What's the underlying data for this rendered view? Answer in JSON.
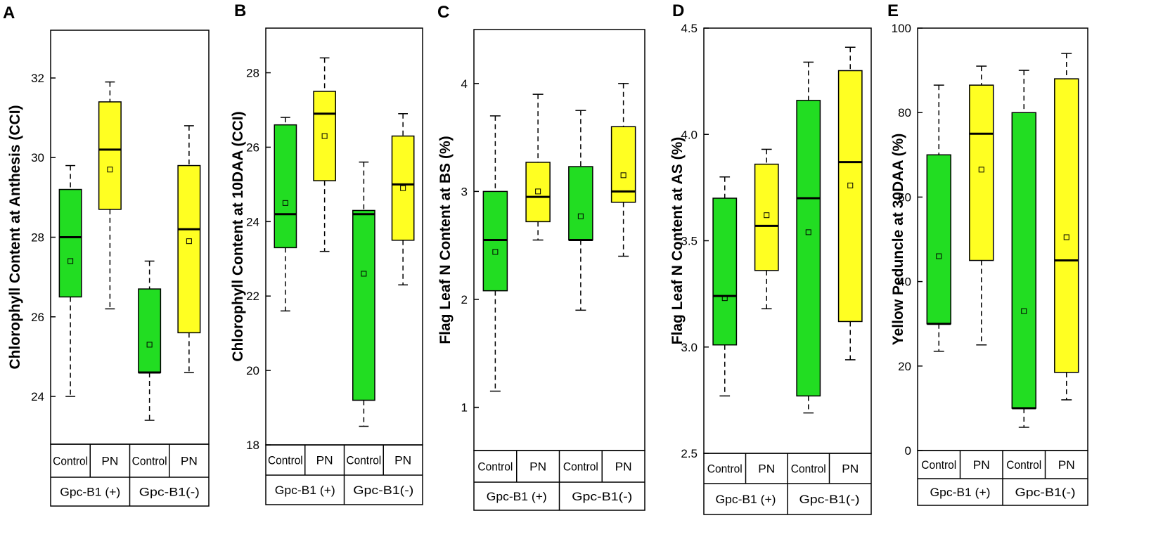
{
  "colors": {
    "control": "#22dd22",
    "pn": "#ffff22",
    "stroke": "#000000"
  },
  "chart_data": [
    {
      "type": "box",
      "panel": "A",
      "ylabel": "Chlorophyll Content at Anthesis (CCI)",
      "ylim": [
        22.8,
        33.2
      ],
      "yticks": [
        24,
        26,
        28,
        30,
        32
      ],
      "treatments": [
        "Control",
        "PN",
        "Control",
        "PN"
      ],
      "genotypes": [
        "Gpc-B1 (+)",
        "Gpc-B1(-)"
      ],
      "boxes": [
        {
          "genotype": "Gpc-B1 (+)",
          "treatment": "Control",
          "min": 24.0,
          "q1": 26.5,
          "median": 28.0,
          "q3": 29.2,
          "max": 29.8,
          "mean": 27.4
        },
        {
          "genotype": "Gpc-B1 (+)",
          "treatment": "PN",
          "min": 26.2,
          "q1": 28.7,
          "median": 30.2,
          "q3": 31.4,
          "max": 31.9,
          "mean": 29.7
        },
        {
          "genotype": "Gpc-B1(-)",
          "treatment": "Control",
          "min": 23.4,
          "q1": 24.6,
          "median": 24.6,
          "q3": 26.7,
          "max": 27.4,
          "mean": 25.3
        },
        {
          "genotype": "Gpc-B1(-)",
          "treatment": "PN",
          "min": 24.6,
          "q1": 25.6,
          "median": 28.2,
          "q3": 29.8,
          "max": 30.8,
          "mean": 27.9
        }
      ]
    },
    {
      "type": "box",
      "panel": "B",
      "ylabel": "Chlorophyll Content at 10DAA (CCI)",
      "ylim": [
        18.0,
        29.2
      ],
      "yticks": [
        18,
        20,
        22,
        24,
        26,
        28
      ],
      "treatments": [
        "Control",
        "PN",
        "Control",
        "PN"
      ],
      "genotypes": [
        "Gpc-B1 (+)",
        "Gpc-B1(-)"
      ],
      "boxes": [
        {
          "genotype": "Gpc-B1 (+)",
          "treatment": "Control",
          "min": 21.6,
          "q1": 23.3,
          "median": 24.2,
          "q3": 26.6,
          "max": 26.8,
          "mean": 24.5
        },
        {
          "genotype": "Gpc-B1 (+)",
          "treatment": "PN",
          "min": 23.2,
          "q1": 25.1,
          "median": 26.9,
          "q3": 27.5,
          "max": 28.4,
          "mean": 26.3
        },
        {
          "genotype": "Gpc-B1(-)",
          "treatment": "Control",
          "min": 18.5,
          "q1": 19.2,
          "median": 24.2,
          "q3": 24.3,
          "max": 25.6,
          "mean": 22.6
        },
        {
          "genotype": "Gpc-B1(-)",
          "treatment": "PN",
          "min": 22.3,
          "q1": 23.5,
          "median": 25.0,
          "q3": 26.3,
          "max": 26.9,
          "mean": 24.9
        }
      ]
    },
    {
      "type": "box",
      "panel": "C",
      "ylabel": "Flag Leaf N Content at BS (%)",
      "ylim": [
        0.6,
        4.5
      ],
      "yticks": [
        1,
        2,
        3,
        4
      ],
      "treatments": [
        "Control",
        "PN",
        "Control",
        "PN"
      ],
      "genotypes": [
        "Gpc-B1 (+)",
        "Gpc-B1(-)"
      ],
      "boxes": [
        {
          "genotype": "Gpc-B1 (+)",
          "treatment": "Control",
          "min": 1.15,
          "q1": 2.08,
          "median": 2.55,
          "q3": 3.0,
          "max": 3.7,
          "mean": 2.44
        },
        {
          "genotype": "Gpc-B1 (+)",
          "treatment": "PN",
          "min": 2.55,
          "q1": 2.72,
          "median": 2.95,
          "q3": 3.27,
          "max": 3.9,
          "mean": 3.0
        },
        {
          "genotype": "Gpc-B1(-)",
          "treatment": "Control",
          "min": 1.9,
          "q1": 2.55,
          "median": 2.55,
          "q3": 3.23,
          "max": 3.75,
          "mean": 2.77
        },
        {
          "genotype": "Gpc-B1(-)",
          "treatment": "PN",
          "min": 2.4,
          "q1": 2.9,
          "median": 3.0,
          "q3": 3.6,
          "max": 4.0,
          "mean": 3.15
        }
      ]
    },
    {
      "type": "box",
      "panel": "D",
      "ylabel": "Flag Leaf N Content at AS (%)",
      "ylim": [
        2.5,
        4.5
      ],
      "yticks": [
        2.5,
        3.0,
        3.5,
        4.0,
        4.5
      ],
      "treatments": [
        "Control",
        "PN",
        "Control",
        "PN"
      ],
      "genotypes": [
        "Gpc-B1 (+)",
        "Gpc-B1(-)"
      ],
      "boxes": [
        {
          "genotype": "Gpc-B1 (+)",
          "treatment": "Control",
          "min": 2.77,
          "q1": 3.01,
          "median": 3.24,
          "q3": 3.7,
          "max": 3.8,
          "mean": 3.23
        },
        {
          "genotype": "Gpc-B1 (+)",
          "treatment": "PN",
          "min": 3.18,
          "q1": 3.36,
          "median": 3.57,
          "q3": 3.86,
          "max": 3.93,
          "mean": 3.62
        },
        {
          "genotype": "Gpc-B1(-)",
          "treatment": "Control",
          "min": 2.69,
          "q1": 2.77,
          "median": 3.7,
          "q3": 4.16,
          "max": 4.34,
          "mean": 3.54
        },
        {
          "genotype": "Gpc-B1(-)",
          "treatment": "PN",
          "min": 2.94,
          "q1": 3.12,
          "median": 3.87,
          "q3": 4.3,
          "max": 4.41,
          "mean": 3.76
        }
      ]
    },
    {
      "type": "box",
      "panel": "E",
      "ylabel": "Yellow Peduncle at 30DAA (%)",
      "ylim": [
        0,
        100
      ],
      "yticks": [
        0,
        20,
        40,
        60,
        80,
        100
      ],
      "treatments": [
        "Control",
        "PN",
        "Control",
        "PN"
      ],
      "genotypes": [
        "Gpc-B1 (+)",
        "Gpc-B1(-)"
      ],
      "boxes": [
        {
          "genotype": "Gpc-B1 (+)",
          "treatment": "Control",
          "min": 23.5,
          "q1": 30,
          "median": 30,
          "q3": 70,
          "max": 86.5,
          "mean": 46
        },
        {
          "genotype": "Gpc-B1 (+)",
          "treatment": "PN",
          "min": 25,
          "q1": 45,
          "median": 75,
          "q3": 86.5,
          "max": 91,
          "mean": 66.5
        },
        {
          "genotype": "Gpc-B1(-)",
          "treatment": "Control",
          "min": 5.5,
          "q1": 10,
          "median": 10,
          "q3": 80,
          "max": 90,
          "mean": 33
        },
        {
          "genotype": "Gpc-B1(-)",
          "treatment": "PN",
          "min": 12,
          "q1": 18.5,
          "median": 45,
          "q3": 88,
          "max": 94,
          "mean": 50.5
        }
      ]
    }
  ]
}
